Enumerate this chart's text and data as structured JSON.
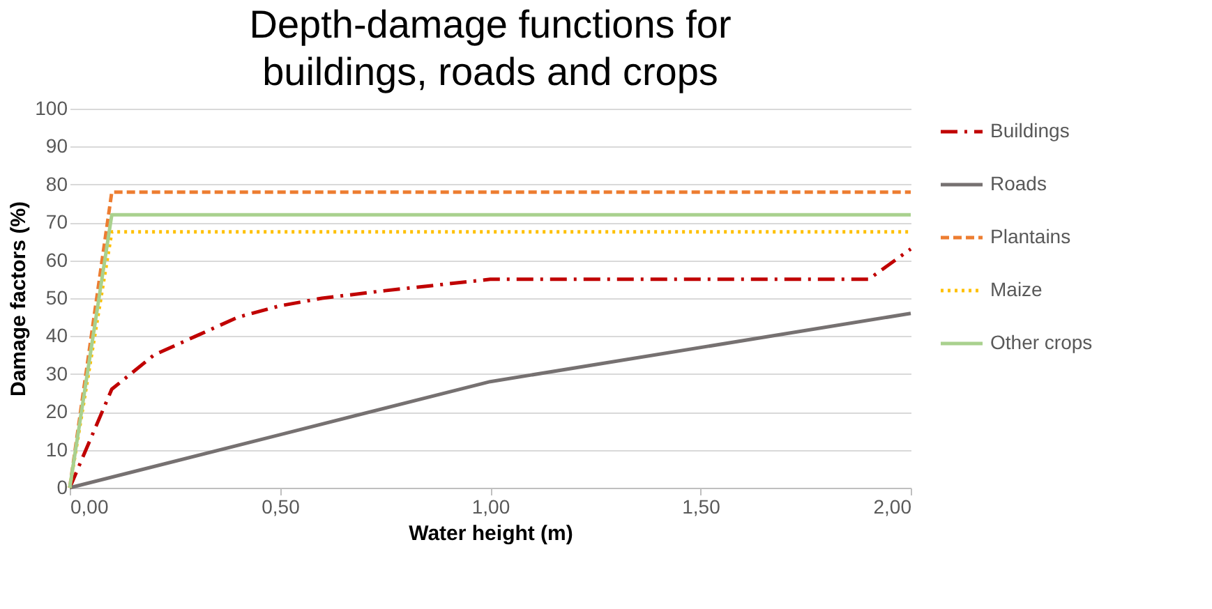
{
  "chart_data": {
    "type": "line",
    "title": "Depth-damage functions for buildings, roads and crops",
    "xlabel": "Water height (m)",
    "ylabel": "Damage factors (%)",
    "xlim": [
      0,
      2
    ],
    "xticks": [
      {
        "value": 0,
        "label": "0,00"
      },
      {
        "value": 0.5,
        "label": "0,50"
      },
      {
        "value": 1,
        "label": "1,00"
      },
      {
        "value": 1.5,
        "label": "1,50"
      },
      {
        "value": 2,
        "label": "2,00"
      }
    ],
    "ylim": [
      0,
      100
    ],
    "yticks": [
      0,
      10,
      20,
      30,
      40,
      50,
      60,
      70,
      80,
      90,
      100
    ],
    "grid": "y",
    "legend": "right",
    "marker": "none",
    "series": [
      {
        "name": "Buildings",
        "color": "#c00000",
        "line_style": "dashdot",
        "x": [
          0,
          0.1,
          0.2,
          0.3,
          0.4,
          0.5,
          0.6,
          0.75,
          1.0,
          1.9,
          2.0
        ],
        "values": [
          0,
          26,
          35,
          40,
          45,
          48,
          50,
          52,
          55,
          55,
          63
        ]
      },
      {
        "name": "Roads",
        "color": "#767171",
        "line_style": "solid",
        "x": [
          0,
          0.5,
          1.0,
          2.0
        ],
        "values": [
          0,
          14,
          28,
          46
        ]
      },
      {
        "name": "Plantains",
        "color": "#ed7d31",
        "line_style": "dashed",
        "x": [
          0,
          0.1,
          2.0
        ],
        "values": [
          0,
          78,
          78
        ]
      },
      {
        "name": "Maize",
        "color": "#ffc000",
        "line_style": "dotted",
        "x": [
          0,
          0.1,
          2.0
        ],
        "values": [
          0,
          67.5,
          67.5
        ]
      },
      {
        "name": "Other crops",
        "color": "#a9d18e",
        "line_style": "solid",
        "x": [
          0,
          0.1,
          2.0
        ],
        "values": [
          0,
          72,
          72
        ]
      }
    ]
  }
}
